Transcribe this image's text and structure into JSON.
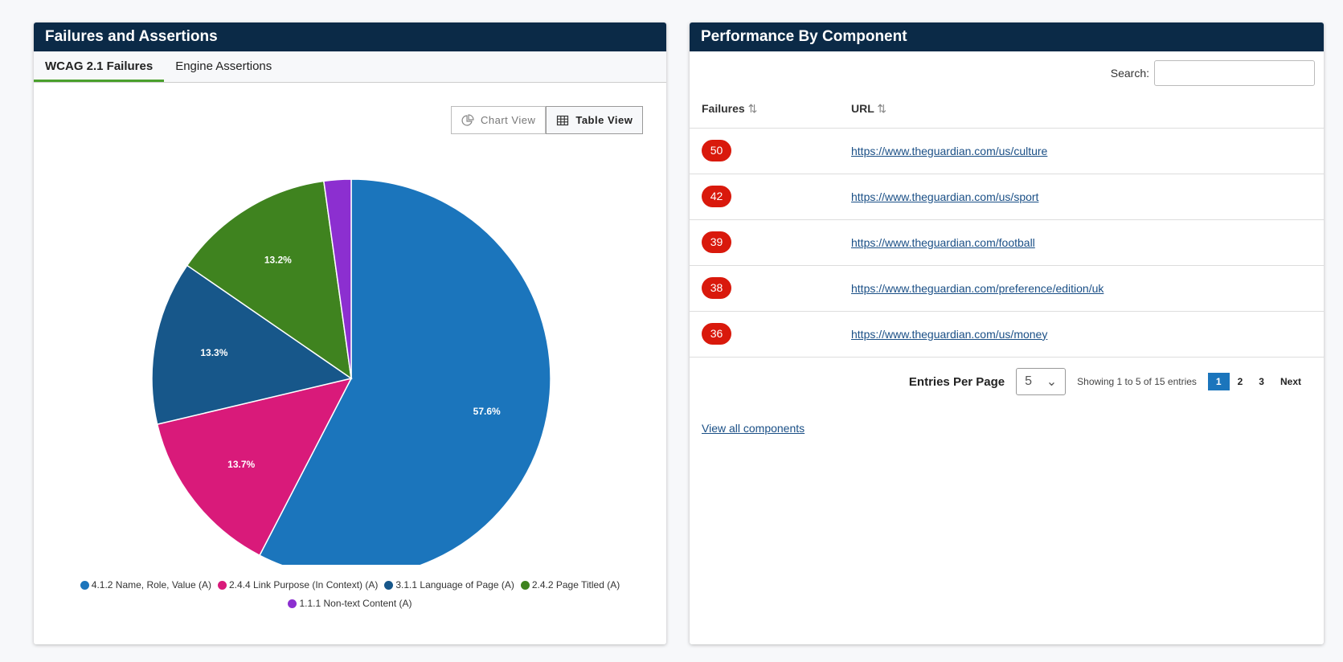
{
  "left_panel": {
    "title": "Failures and Assertions",
    "tabs": [
      {
        "label": "WCAG 2.1 Failures"
      },
      {
        "label": "Engine Assertions"
      }
    ],
    "view_buttons": {
      "chart": "Chart View",
      "table": "Table View"
    }
  },
  "chart_data": {
    "type": "pie",
    "title": "",
    "slices": [
      {
        "label": "4.1.2 Name, Role, Value (A)",
        "value": 57.6,
        "display": "57.6%",
        "color": "#1b75bc"
      },
      {
        "label": "2.4.4 Link Purpose (In Context) (A)",
        "value": 13.7,
        "display": "13.7%",
        "color": "#d91a7a"
      },
      {
        "label": "3.1.1 Language of Page (A)",
        "value": 13.3,
        "display": "13.3%",
        "color": "#17578a"
      },
      {
        "label": "2.4.2 Page Titled (A)",
        "value": 13.2,
        "display": "13.2%",
        "color": "#3f831f"
      },
      {
        "label": "1.1.1 Non-text Content (A)",
        "value": 2.2,
        "display": "",
        "color": "#8c2fd0"
      }
    ],
    "legend_position": "bottom"
  },
  "right_panel": {
    "title": "Performance By Component",
    "search_label": "Search:",
    "search_value": "",
    "columns": [
      "Failures",
      "URL"
    ],
    "rows": [
      {
        "failures": "50",
        "url": "https://www.theguardian.com/us/culture"
      },
      {
        "failures": "42",
        "url": "https://www.theguardian.com/us/sport"
      },
      {
        "failures": "39",
        "url": "https://www.theguardian.com/football"
      },
      {
        "failures": "38",
        "url": "https://www.theguardian.com/preference/edition/uk"
      },
      {
        "failures": "36",
        "url": "https://www.theguardian.com/us/money"
      }
    ],
    "pagination": {
      "entries_label": "Entries Per Page",
      "entries_value": "5",
      "showing": "Showing 1 to 5 of 15 entries",
      "pages": [
        "1",
        "2",
        "3"
      ],
      "next": "Next"
    },
    "view_all": "View all components"
  }
}
